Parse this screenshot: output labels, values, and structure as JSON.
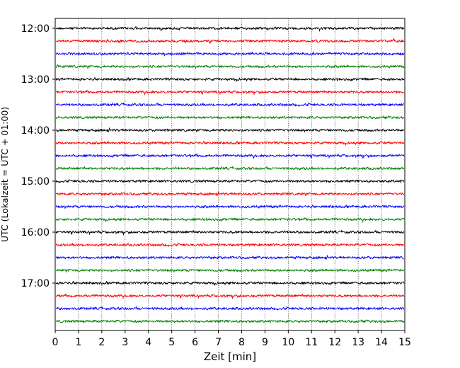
{
  "chart_data": {
    "type": "line",
    "title": "",
    "xlabel": "Zeit  [min]",
    "ylabel": "UTC (Lokalzeit = UTC + 01:00)",
    "xlim": [
      0,
      15
    ],
    "xticks": [
      "0",
      "1",
      "2",
      "3",
      "4",
      "5",
      "6",
      "7",
      "8",
      "9",
      "10",
      "11",
      "12",
      "13",
      "14",
      "15"
    ],
    "yticks": [
      "12:00",
      "13:00",
      "14:00",
      "15:00",
      "16:00",
      "17:00"
    ],
    "trace_start": "12:00",
    "trace_interval_min": 15,
    "trace_count": 24,
    "grid": "vertical, dotted",
    "legend": "none",
    "colors_cycle": [
      "#000000",
      "#ff0000",
      "#0000ff",
      "#008000"
    ]
  }
}
